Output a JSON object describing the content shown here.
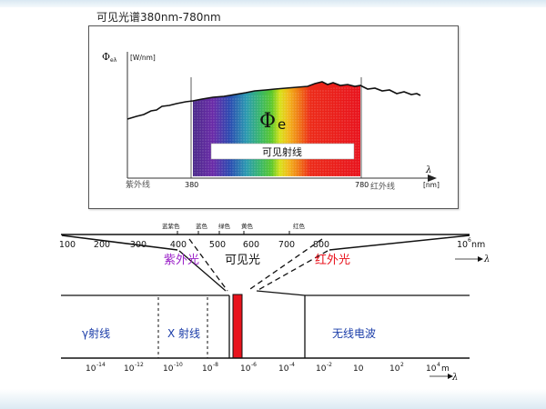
{
  "title": "可见光谱380nm-780nm",
  "spectrum": {
    "y_label": "Φ",
    "y_label_sub": "eλ",
    "y_label_unit": "[W/nm]",
    "phi_symbol": "Φ",
    "phi_sub": "e",
    "visible_label": "可见射线",
    "uv_label": "紫外线",
    "ir_label": "红外线",
    "tick_380": "380",
    "tick_780": "780",
    "lambda": "λ",
    "unit": "[nm]"
  },
  "color_names": [
    "蓝紫色",
    "蓝色",
    "绿色",
    "黄色",
    "红色"
  ],
  "nm_ticks": [
    "100",
    "200",
    "300",
    "400",
    "500",
    "600",
    "700",
    "800"
  ],
  "nm_end": {
    "base": "10",
    "exp": "6",
    "unit": "nm"
  },
  "lambda_top": "λ",
  "uv_band": "紫外光",
  "visible_band": "可见光",
  "ir_band": "红外光",
  "gamma_label": "γ射线",
  "xray_label": "X 射线",
  "radio_label": "无线电波",
  "m_ticks": [
    {
      "base": "10",
      "exp": "-14"
    },
    {
      "base": "10",
      "exp": "-12"
    },
    {
      "base": "10",
      "exp": "-10"
    },
    {
      "base": "10",
      "exp": "-8"
    },
    {
      "base": "10",
      "exp": "-6"
    },
    {
      "base": "10",
      "exp": "-4"
    },
    {
      "base": "10",
      "exp": "-2"
    },
    {
      "base": "10",
      "exp": ""
    },
    {
      "base": "10",
      "exp": "2"
    },
    {
      "base": "10",
      "exp": "4",
      "unit": "m"
    }
  ],
  "lambda_bottom": "λ",
  "colors": {
    "uv": "#9b22c8",
    "ir": "#e8121c",
    "band_blue": "#1a3ca8",
    "strip": "#e8121c"
  }
}
